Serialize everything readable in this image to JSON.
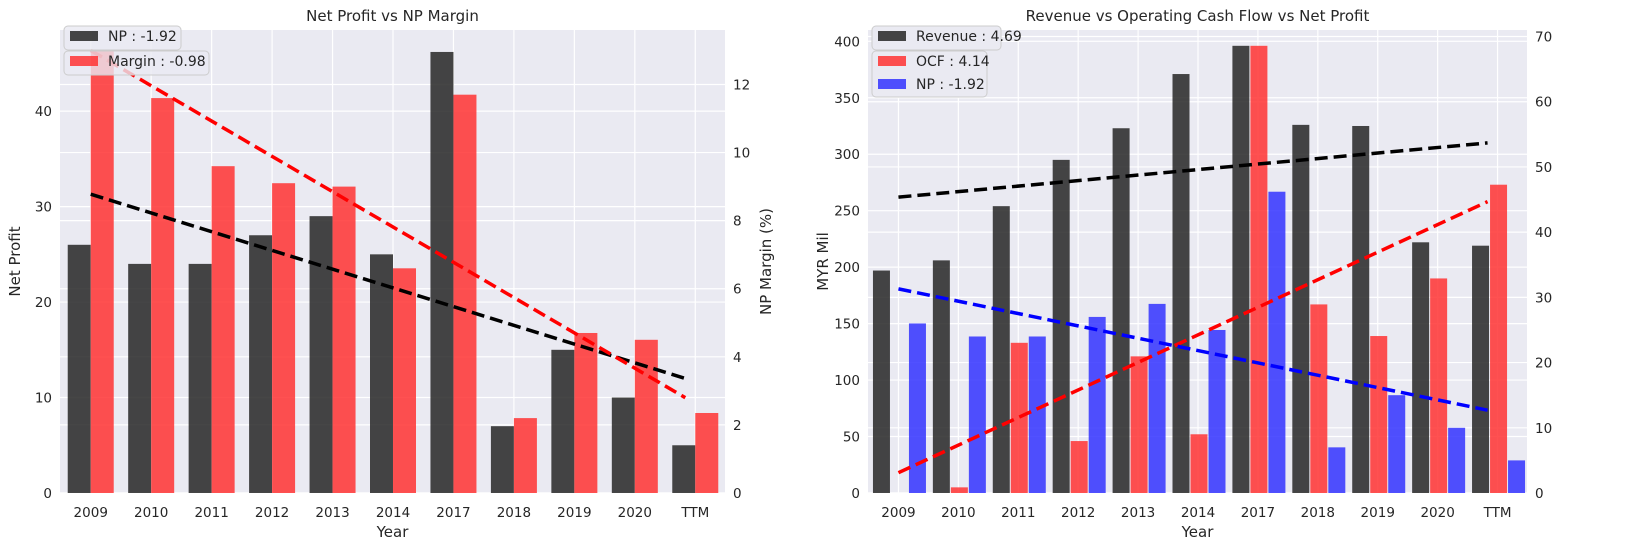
{
  "colors": {
    "plot_bg": "#EAEAF2",
    "grid": "#FFFFFF",
    "np_bar": "#262626",
    "margin_bar": "#FF3333",
    "revenue_bar": "#262626",
    "ocf_bar": "#FF3333",
    "np_blue_bar": "#3333FF",
    "trend_black": "#000000",
    "trend_red": "#FF0000",
    "trend_blue": "#0000FF"
  },
  "chart_data": [
    {
      "type": "bar",
      "title": "Net Profit vs NP Margin",
      "xlabel": "Year",
      "ylabel": "Net Profit",
      "y2label": "NP Margin (%)",
      "categories": [
        "2009",
        "2010",
        "2011",
        "2012",
        "2013",
        "2014",
        "2017",
        "2018",
        "2019",
        "2020",
        "TTM"
      ],
      "ylim": [
        0,
        48.5
      ],
      "y2lim": [
        0,
        13.6
      ],
      "yticks": [
        "0",
        "10",
        "20",
        "30",
        "40"
      ],
      "y2ticks": [
        "0",
        "2",
        "4",
        "6",
        "8",
        "10",
        "12"
      ],
      "series": [
        {
          "name": "NP : -1.92",
          "axis": "left",
          "values": [
            26,
            24,
            24,
            27,
            29,
            25,
            46.2,
            7,
            15,
            10,
            5
          ]
        },
        {
          "name": "Margin : -0.98",
          "axis": "right",
          "values": [
            13.0,
            11.6,
            9.6,
            9.1,
            9.0,
            6.6,
            11.7,
            2.2,
            4.7,
            4.5,
            2.35
          ]
        }
      ],
      "trendlines": [
        {
          "series": "NP",
          "axis": "left",
          "from": 31.3,
          "to": 12.0
        },
        {
          "series": "Margin",
          "axis": "right",
          "from": 13.0,
          "to": 2.8
        }
      ],
      "legend": "top-left",
      "grid": true
    },
    {
      "type": "bar",
      "title": "Revenue vs Operating Cash Flow vs Net Profit",
      "xlabel": "Year",
      "ylabel": "MYR Mil",
      "categories": [
        "2009",
        "2010",
        "2011",
        "2012",
        "2013",
        "2014",
        "2017",
        "2018",
        "2019",
        "2020",
        "TTM"
      ],
      "ylim": [
        0,
        410
      ],
      "y2lim": [
        0,
        71
      ],
      "yticks": [
        "0",
        "50",
        "100",
        "150",
        "200",
        "250",
        "300",
        "350",
        "400"
      ],
      "y2ticks": [
        "0",
        "10",
        "20",
        "30",
        "40",
        "50",
        "60",
        "70"
      ],
      "series": [
        {
          "name": "Revenue : 4.69",
          "axis": "left",
          "values": [
            197,
            206,
            254,
            295,
            323,
            371,
            396,
            326,
            325,
            222,
            219
          ]
        },
        {
          "name": "OCF : 4.14",
          "axis": "left",
          "values": [
            0,
            5,
            133,
            46,
            121,
            52,
            396,
            167,
            139,
            190,
            273
          ]
        },
        {
          "name": "NP : -1.92",
          "axis": "right",
          "values": [
            26,
            24,
            24,
            27,
            29,
            25,
            46.2,
            7,
            15,
            10,
            5
          ]
        }
      ],
      "trendlines": [
        {
          "series": "Revenue",
          "axis": "left",
          "from": 262,
          "to": 310
        },
        {
          "series": "OCF",
          "axis": "left",
          "from": 18,
          "to": 258
        },
        {
          "series": "NP",
          "axis": "right",
          "from": 31.3,
          "to": 12.7
        }
      ],
      "legend": "top-left",
      "grid": true
    }
  ]
}
